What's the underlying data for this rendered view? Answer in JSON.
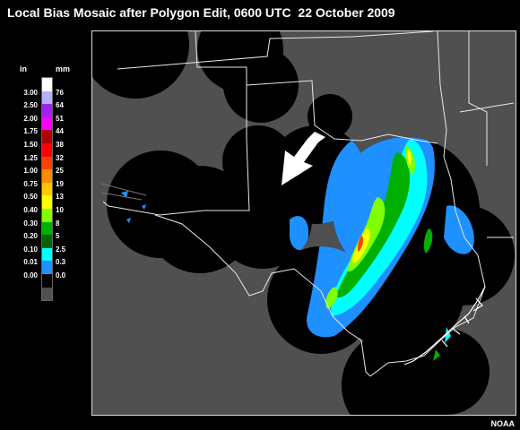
{
  "title": "Local Bias Mosaic after Polygon Edit, 0600 UTC  22 October 2009",
  "legend": {
    "unit_in": "in",
    "unit_mm": "mm",
    "entries": [
      {
        "in": "",
        "mm": "",
        "color": "#ffffff"
      },
      {
        "in": "3.00",
        "mm": "76",
        "color": "#b0b0ff"
      },
      {
        "in": "2.50",
        "mm": "64",
        "color": "#a020f0"
      },
      {
        "in": "2.00",
        "mm": "51",
        "color": "#ff00ff"
      },
      {
        "in": "1.75",
        "mm": "44",
        "color": "#b00000"
      },
      {
        "in": "1.50",
        "mm": "38",
        "color": "#ff0000"
      },
      {
        "in": "1.25",
        "mm": "32",
        "color": "#ff4000"
      },
      {
        "in": "1.00",
        "mm": "25",
        "color": "#ff8c00"
      },
      {
        "in": "0.75",
        "mm": "19",
        "color": "#ffc800"
      },
      {
        "in": "0.50",
        "mm": "13",
        "color": "#ffff00"
      },
      {
        "in": "0.40",
        "mm": "10",
        "color": "#80ff00"
      },
      {
        "in": "0.30",
        "mm": "8",
        "color": "#00b000"
      },
      {
        "in": "0.20",
        "mm": "5",
        "color": "#006400"
      },
      {
        "in": "0.10",
        "mm": "2.5",
        "color": "#00ffff"
      },
      {
        "in": "0.01",
        "mm": "0.3",
        "color": "#1e90ff"
      },
      {
        "in": "0.00",
        "mm": "0.0",
        "color": "#000000"
      },
      {
        "in": "",
        "mm": "",
        "color": "#505050"
      }
    ]
  },
  "credit": "NOAA"
}
